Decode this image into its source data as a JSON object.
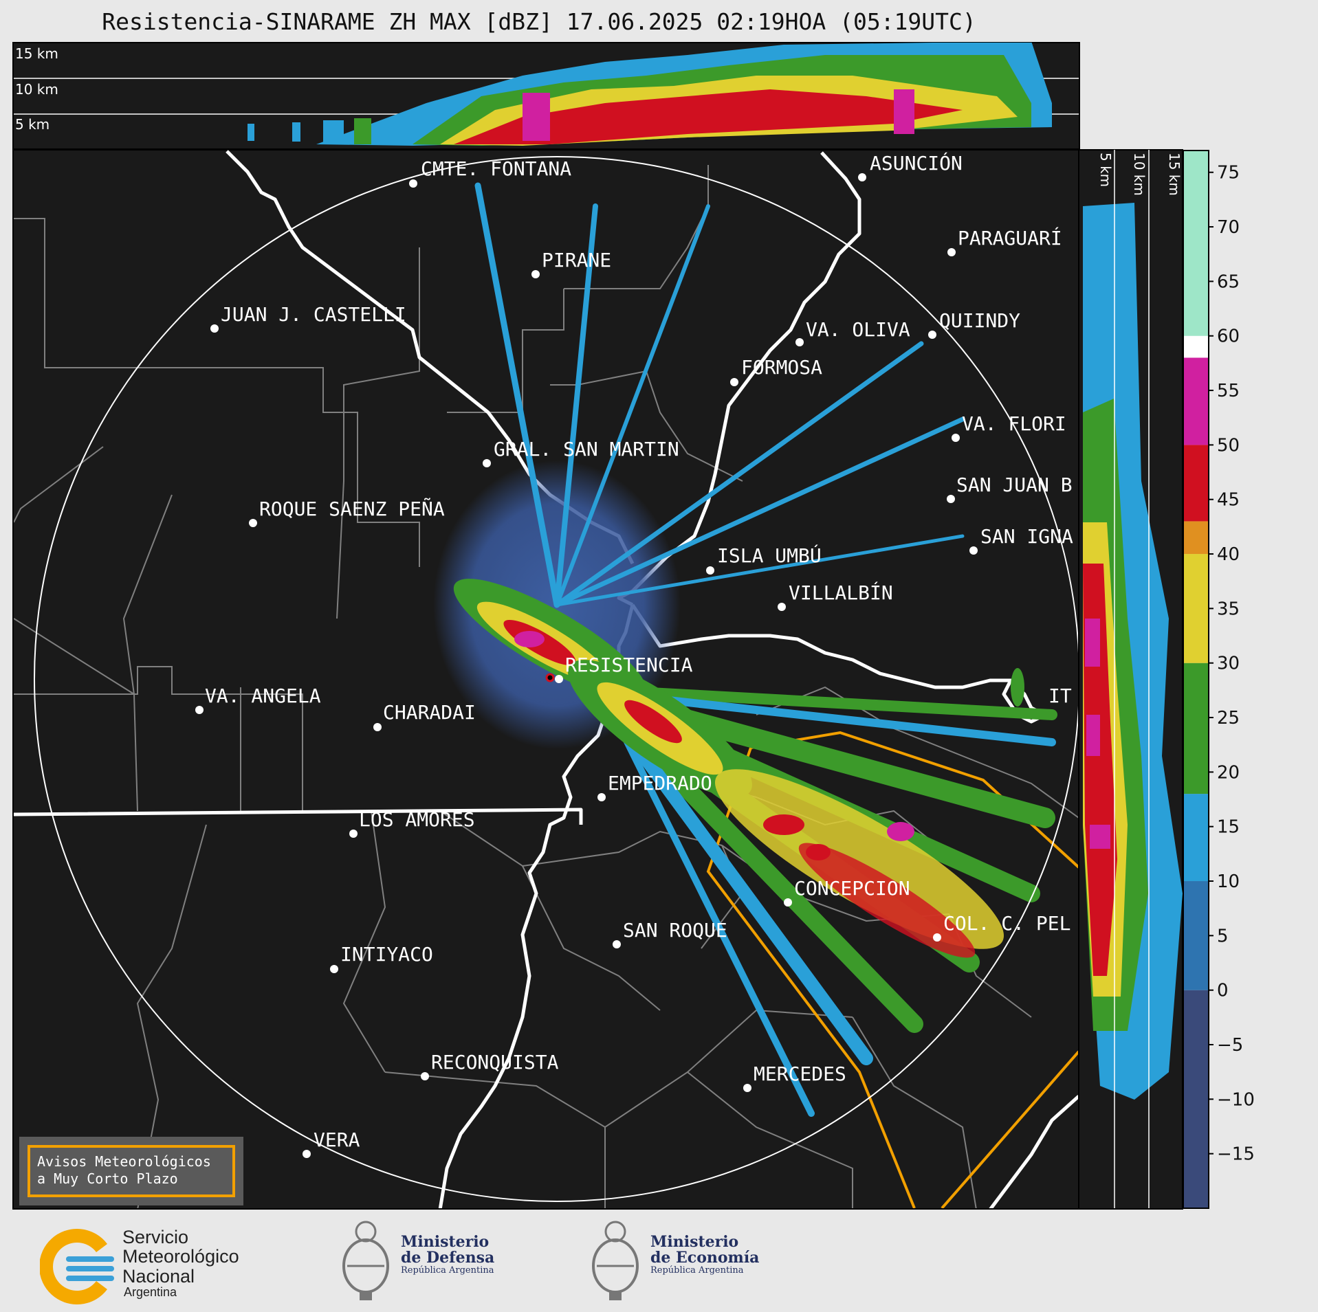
{
  "title": "Resistencia-SINARAME ZH MAX [dBZ] 17.06.2025 02:19HOA (05:19UTC)",
  "top_panel": {
    "heights": [
      "15 km",
      "10 km",
      "5 km"
    ]
  },
  "side_panel": {
    "heights": [
      "5 km",
      "10 km",
      "15 km"
    ]
  },
  "cities": [
    {
      "name": "CMTE. FONTANA"
    },
    {
      "name": "ASUNCIÓN"
    },
    {
      "name": "PIRANE"
    },
    {
      "name": "PARAGUARÍ"
    },
    {
      "name": "JUAN J. CASTELLI"
    },
    {
      "name": "VA. OLIVA"
    },
    {
      "name": "QUIINDY"
    },
    {
      "name": "FORMOSA"
    },
    {
      "name": "VA. FLORI"
    },
    {
      "name": "GRAL. SAN MARTIN"
    },
    {
      "name": "SAN JUAN B"
    },
    {
      "name": "ROQUE SAENZ PEÑA"
    },
    {
      "name": "SAN IGNA"
    },
    {
      "name": "ISLA UMBÚ"
    },
    {
      "name": "VILLALBÍN"
    },
    {
      "name": "RESISTENCIA"
    },
    {
      "name": "VA. ANGELA"
    },
    {
      "name": "CHARADAI"
    },
    {
      "name": "IT"
    },
    {
      "name": "EMPEDRADO"
    },
    {
      "name": "LOS AMORES"
    },
    {
      "name": "CONCEPCION"
    },
    {
      "name": "SAN ROQUE"
    },
    {
      "name": "COL. C. PEL"
    },
    {
      "name": "INTIYACO"
    },
    {
      "name": "RECONQUISTA"
    },
    {
      "name": "MERCEDES"
    },
    {
      "name": "VERA"
    }
  ],
  "colorbar": {
    "ticks": [
      "75",
      "70",
      "65",
      "60",
      "55",
      "50",
      "45",
      "40",
      "35",
      "30",
      "25",
      "20",
      "15",
      "10",
      "5",
      "0",
      "−5",
      "−10",
      "−15"
    ],
    "bands": [
      {
        "from": -20,
        "to": 0,
        "color": "#3a4a7a"
      },
      {
        "from": 0,
        "to": 10,
        "color": "#2e74b0"
      },
      {
        "from": 10,
        "to": 18,
        "color": "#2aa0d8"
      },
      {
        "from": 18,
        "to": 30,
        "color": "#3c9a2a"
      },
      {
        "from": 30,
        "to": 40,
        "color": "#e0d030"
      },
      {
        "from": 40,
        "to": 43,
        "color": "#e09020"
      },
      {
        "from": 43,
        "to": 50,
        "color": "#d01020"
      },
      {
        "from": 50,
        "to": 58,
        "color": "#d020a0"
      },
      {
        "from": 58,
        "to": 60,
        "color": "#ffffff"
      },
      {
        "from": 60,
        "to": 77,
        "color": "#9ee6c8"
      }
    ]
  },
  "warning_box": {
    "line1": "Avisos Meteorológicos",
    "line2": "a Muy Corto Plazo"
  },
  "logos": {
    "smn": {
      "line1": "Servicio",
      "line2": "Meteorológico",
      "line3": "Nacional",
      "line4": "Argentina"
    },
    "defensa": {
      "line1": "Ministerio",
      "line2": "de Defensa",
      "line3": "República Argentina"
    },
    "economia": {
      "line1": "Ministerio",
      "line2": "de Economía",
      "line3": "República Argentina"
    }
  }
}
